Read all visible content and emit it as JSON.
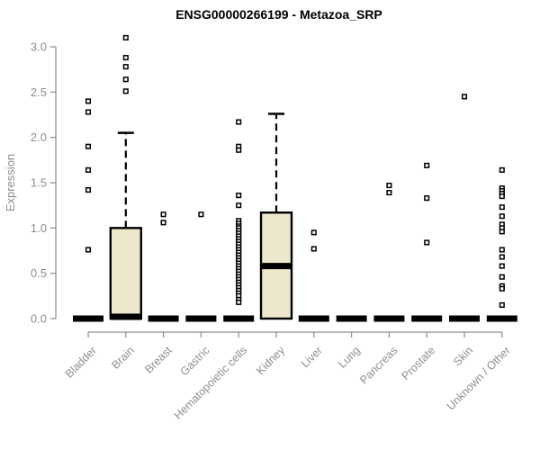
{
  "chart_data": {
    "type": "boxplot",
    "title": "ENSG00000266199 - Metazoa_SRP",
    "xlabel": "",
    "ylabel": "Expression",
    "ylim": [
      0.0,
      3.1
    ],
    "yticks": [
      "0.0",
      "0.5",
      "1.0",
      "1.5",
      "2.0",
      "2.5",
      "3.0"
    ],
    "grid": "off",
    "legend": "none",
    "categories": [
      "Bladder",
      "Brain",
      "Breast",
      "Gastric",
      "Hematopoietic cells",
      "Kidney",
      "Liver",
      "Lung",
      "Pancreas",
      "Prostate",
      "Skin",
      "Unknown / Other"
    ],
    "series": [
      {
        "name": "Bladder",
        "q1": 0,
        "median": 0,
        "q3": 0,
        "whisker_low": 0,
        "whisker_high": 0,
        "outliers": [
          2.4,
          2.28,
          1.9,
          1.64,
          1.42,
          0.76
        ]
      },
      {
        "name": "Brain",
        "q1": 0,
        "median": 0.02,
        "q3": 1.0,
        "whisker_low": 0,
        "whisker_high": 2.05,
        "outliers": [
          3.1,
          2.88,
          2.78,
          2.64,
          2.51
        ]
      },
      {
        "name": "Breast",
        "q1": 0,
        "median": 0,
        "q3": 0,
        "whisker_low": 0,
        "whisker_high": 0,
        "outliers": [
          1.15,
          1.06
        ]
      },
      {
        "name": "Gastric",
        "q1": 0,
        "median": 0,
        "q3": 0,
        "whisker_low": 0,
        "whisker_high": 0,
        "outliers": [
          1.15
        ]
      },
      {
        "name": "Hematopoietic cells",
        "q1": 0,
        "median": 0,
        "q3": 0,
        "whisker_low": 0,
        "whisker_high": 0,
        "outliers": [
          2.17,
          1.9,
          1.86,
          1.36,
          1.25,
          1.08,
          1.05,
          1.02,
          1.0,
          0.97,
          0.94,
          0.91,
          0.88,
          0.85,
          0.82,
          0.79,
          0.76,
          0.73,
          0.7,
          0.67,
          0.64,
          0.61,
          0.58,
          0.55,
          0.52,
          0.49,
          0.46,
          0.43,
          0.4,
          0.37,
          0.34,
          0.31,
          0.28,
          0.25,
          0.21,
          0.18
        ]
      },
      {
        "name": "Kidney",
        "q1": 0,
        "median": 0.58,
        "q3": 1.17,
        "whisker_low": 0,
        "whisker_high": 2.26,
        "outliers": []
      },
      {
        "name": "Liver",
        "q1": 0,
        "median": 0,
        "q3": 0,
        "whisker_low": 0,
        "whisker_high": 0,
        "outliers": [
          0.95,
          0.77
        ]
      },
      {
        "name": "Lung",
        "q1": 0,
        "median": 0,
        "q3": 0,
        "whisker_low": 0,
        "whisker_high": 0,
        "outliers": []
      },
      {
        "name": "Pancreas",
        "q1": 0,
        "median": 0,
        "q3": 0,
        "whisker_low": 0,
        "whisker_high": 0,
        "outliers": [
          1.47,
          1.39
        ]
      },
      {
        "name": "Prostate",
        "q1": 0,
        "median": 0,
        "q3": 0,
        "whisker_low": 0,
        "whisker_high": 0,
        "outliers": [
          1.69,
          1.33,
          0.84
        ]
      },
      {
        "name": "Skin",
        "q1": 0,
        "median": 0,
        "q3": 0,
        "whisker_low": 0,
        "whisker_high": 0,
        "outliers": [
          2.45
        ]
      },
      {
        "name": "Unknown / Other",
        "q1": 0,
        "median": 0,
        "q3": 0,
        "whisker_low": 0,
        "whisker_high": 0,
        "outliers": [
          1.64,
          1.44,
          1.41,
          1.38,
          1.35,
          1.23,
          1.13,
          1.04,
          1.0,
          0.96,
          0.76,
          0.68,
          0.58,
          0.46,
          0.36,
          0.33,
          0.15
        ]
      }
    ],
    "colors": {
      "background": "#ffffff",
      "title": "#000000",
      "axis_line": "#919191",
      "axis_text": "#8e8e8e",
      "box_fill": "#EDE7CB",
      "box_border": "#000000",
      "median": "#000000",
      "outlier": "#000000"
    }
  }
}
